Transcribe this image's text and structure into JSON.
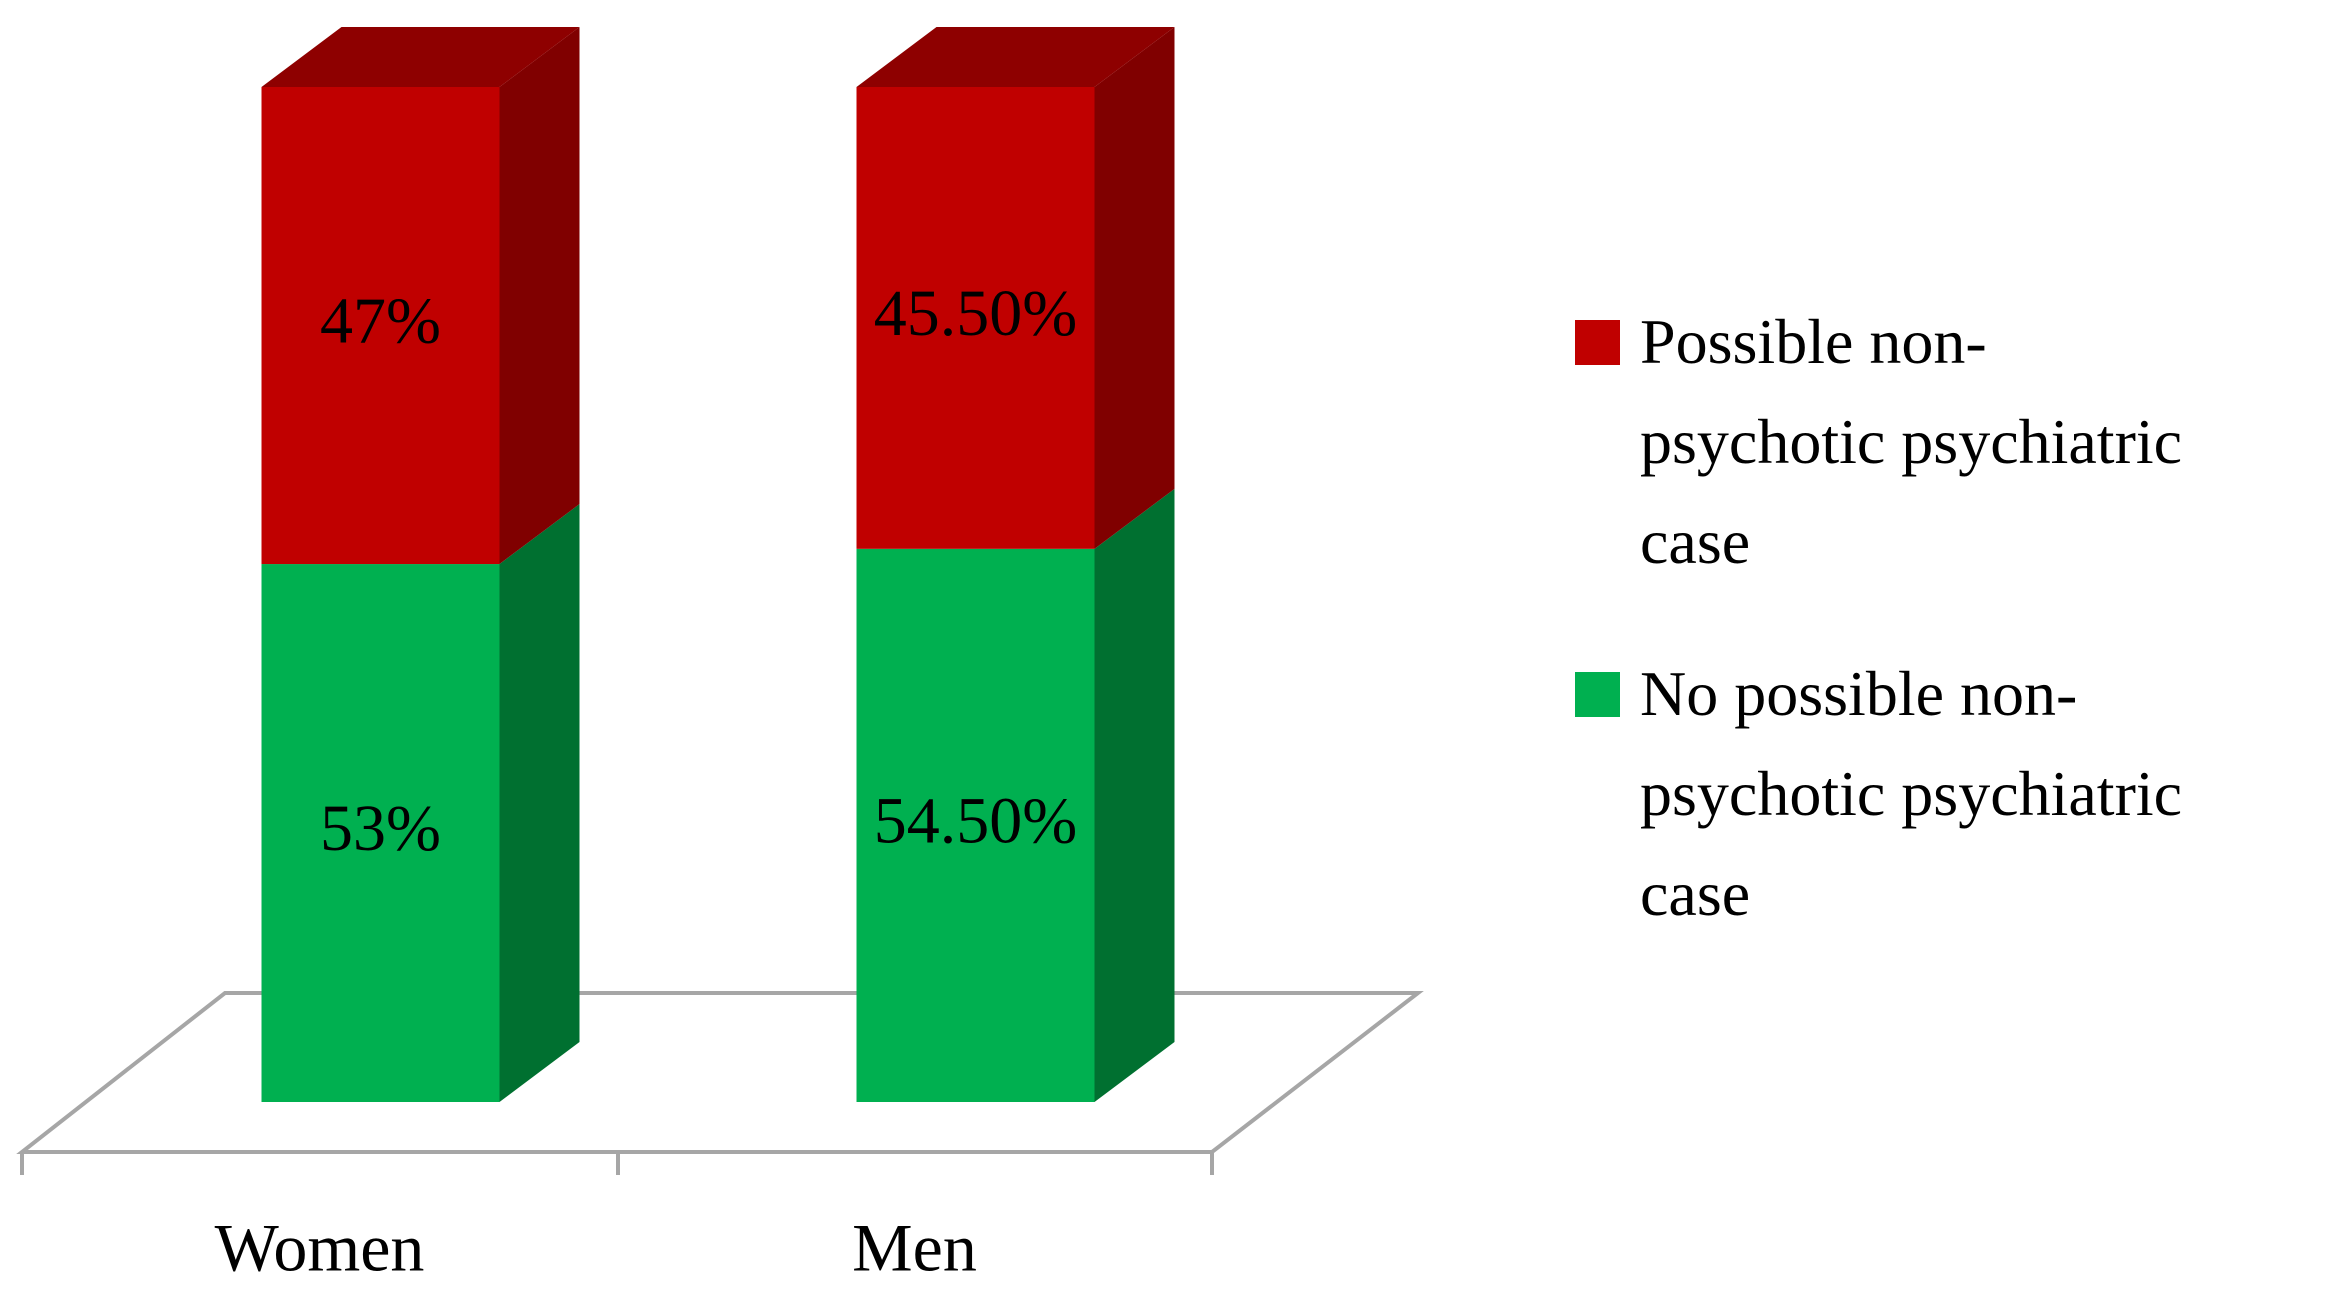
{
  "chart_data": {
    "type": "bar3d-stacked",
    "categories": [
      "Women",
      "Men"
    ],
    "series": [
      {
        "name": "No possible non-psychotic psychiatric case",
        "color": "#00b050",
        "side_color": "#007030",
        "values": [
          53,
          54.5
        ],
        "value_labels": [
          "53%",
          "54.50%"
        ]
      },
      {
        "name": "Possible non-psychotic psychiatric case",
        "color": "#c00000",
        "side_color": "#800000",
        "top_color": "#8e0000",
        "values": [
          47,
          45.5
        ],
        "value_labels": [
          "47%",
          "45.50%"
        ]
      }
    ],
    "legend": "right"
  }
}
